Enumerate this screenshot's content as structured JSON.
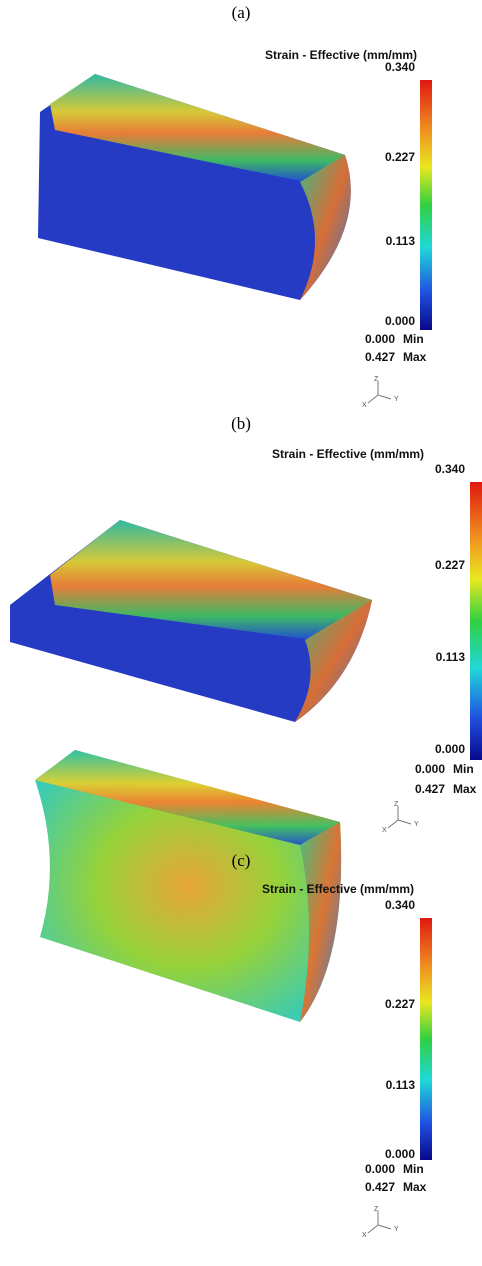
{
  "panels": [
    {
      "label": "(a)",
      "legend_title": "Strain - Effective (mm/mm)",
      "ticks": [
        "0.340",
        "0.227",
        "0.113",
        "0.000"
      ],
      "min_value": "0.000",
      "min_label": "Min",
      "max_value": "0.427",
      "max_label": "Max",
      "axes": {
        "x": "X",
        "y": "Y",
        "z": "Z"
      }
    },
    {
      "label": "(b)",
      "legend_title": "Strain - Effective (mm/mm)",
      "ticks": [
        "0.340",
        "0.227",
        "0.113",
        "0.000"
      ],
      "min_value": "0.000",
      "min_label": "Min",
      "max_value": "0.427",
      "max_label": "Max",
      "axes": {
        "x": "X",
        "y": "Y",
        "z": "Z"
      }
    },
    {
      "label": "(c)",
      "legend_title": "Strain - Effective (mm/mm)",
      "ticks": [
        "0.340",
        "0.227",
        "0.113",
        "0.000"
      ],
      "min_value": "0.000",
      "min_label": "Min",
      "max_value": "0.427",
      "max_label": "Max",
      "axes": {
        "x": "X",
        "y": "Y",
        "z": "Z"
      }
    }
  ]
}
